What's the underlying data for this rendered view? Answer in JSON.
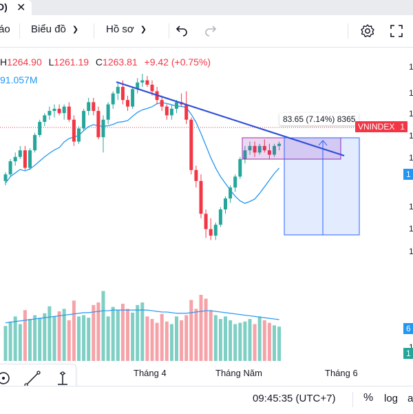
{
  "tab": {
    "title": "D)",
    "close_icon": "close-icon"
  },
  "toolbar": {
    "partial_label": "áo",
    "chart_menu": "Biểu đồ",
    "profile_menu": "Hồ sơ",
    "undo_icon": "undo-icon",
    "redo_icon": "redo-icon",
    "settings_icon": "gear-icon",
    "fullscreen_icon": "fullscreen-icon"
  },
  "legend": {
    "high_label": "H",
    "high": "1264.90",
    "low_label": "L",
    "low": "1261.19",
    "close_label": "C",
    "close": "1263.81",
    "change": "+9.42 (+0.75%)",
    "volume_ma": "91.057M"
  },
  "price_axis": {
    "partial_ticks": [
      "1",
      "1",
      "1",
      "1",
      "1",
      "1",
      "1",
      "1",
      "1"
    ],
    "symbol_tag": "VNINDEX",
    "symbol_tag_partial": "1",
    "ma_tag_partial": "1",
    "vol_tag_partial": "6",
    "vol_tag2_partial": "1"
  },
  "measure": {
    "text": "83.65 (7.14%) 8365"
  },
  "time_axis": {
    "labels": [
      "Tháng 4",
      "Tháng Năm",
      "Tháng 6"
    ]
  },
  "status": {
    "time": "09:45:35 (UTC+7)",
    "percent": "%",
    "log": "log",
    "auto": "a"
  },
  "colors": {
    "up": "#26a69a",
    "down": "#f23645",
    "ma": "#2196f3",
    "trend": "#2e4fd8",
    "vol_up": "#7fcfc4",
    "vol_down": "#f5a3a9"
  },
  "chart_data": {
    "type": "bar",
    "candles": [
      {
        "o": 1230,
        "h": 1238,
        "l": 1226,
        "c": 1236
      },
      {
        "o": 1236,
        "h": 1250,
        "l": 1234,
        "c": 1248
      },
      {
        "o": 1248,
        "h": 1256,
        "l": 1244,
        "c": 1252
      },
      {
        "o": 1252,
        "h": 1262,
        "l": 1250,
        "c": 1258
      },
      {
        "o": 1258,
        "h": 1262,
        "l": 1240,
        "c": 1242
      },
      {
        "o": 1242,
        "h": 1260,
        "l": 1240,
        "c": 1258
      },
      {
        "o": 1258,
        "h": 1274,
        "l": 1256,
        "c": 1272
      },
      {
        "o": 1272,
        "h": 1286,
        "l": 1270,
        "c": 1284
      },
      {
        "o": 1284,
        "h": 1292,
        "l": 1280,
        "c": 1290
      },
      {
        "o": 1290,
        "h": 1298,
        "l": 1286,
        "c": 1294
      },
      {
        "o": 1294,
        "h": 1300,
        "l": 1288,
        "c": 1296
      },
      {
        "o": 1296,
        "h": 1300,
        "l": 1290,
        "c": 1292
      },
      {
        "o": 1292,
        "h": 1300,
        "l": 1286,
        "c": 1298
      },
      {
        "o": 1298,
        "h": 1302,
        "l": 1284,
        "c": 1286
      },
      {
        "o": 1286,
        "h": 1290,
        "l": 1262,
        "c": 1266
      },
      {
        "o": 1266,
        "h": 1280,
        "l": 1264,
        "c": 1278
      },
      {
        "o": 1278,
        "h": 1296,
        "l": 1276,
        "c": 1294
      },
      {
        "o": 1294,
        "h": 1306,
        "l": 1290,
        "c": 1302
      },
      {
        "o": 1302,
        "h": 1306,
        "l": 1290,
        "c": 1294
      },
      {
        "o": 1294,
        "h": 1298,
        "l": 1268,
        "c": 1270
      },
      {
        "o": 1270,
        "h": 1290,
        "l": 1256,
        "c": 1286
      },
      {
        "o": 1286,
        "h": 1302,
        "l": 1282,
        "c": 1300
      },
      {
        "o": 1300,
        "h": 1312,
        "l": 1296,
        "c": 1310
      },
      {
        "o": 1310,
        "h": 1320,
        "l": 1304,
        "c": 1316
      },
      {
        "o": 1316,
        "h": 1322,
        "l": 1300,
        "c": 1304
      },
      {
        "o": 1304,
        "h": 1308,
        "l": 1294,
        "c": 1298
      },
      {
        "o": 1298,
        "h": 1316,
        "l": 1296,
        "c": 1314
      },
      {
        "o": 1314,
        "h": 1324,
        "l": 1310,
        "c": 1320
      },
      {
        "o": 1320,
        "h": 1328,
        "l": 1316,
        "c": 1322
      },
      {
        "o": 1322,
        "h": 1326,
        "l": 1316,
        "c": 1318
      },
      {
        "o": 1318,
        "h": 1322,
        "l": 1308,
        "c": 1312
      },
      {
        "o": 1312,
        "h": 1316,
        "l": 1300,
        "c": 1304
      },
      {
        "o": 1304,
        "h": 1308,
        "l": 1294,
        "c": 1298
      },
      {
        "o": 1298,
        "h": 1300,
        "l": 1286,
        "c": 1290
      },
      {
        "o": 1290,
        "h": 1300,
        "l": 1286,
        "c": 1296
      },
      {
        "o": 1296,
        "h": 1304,
        "l": 1292,
        "c": 1302
      },
      {
        "o": 1302,
        "h": 1310,
        "l": 1298,
        "c": 1300
      },
      {
        "o": 1300,
        "h": 1312,
        "l": 1282,
        "c": 1286
      },
      {
        "o": 1286,
        "h": 1288,
        "l": 1236,
        "c": 1240
      },
      {
        "o": 1240,
        "h": 1244,
        "l": 1224,
        "c": 1230
      },
      {
        "o": 1230,
        "h": 1236,
        "l": 1196,
        "c": 1200
      },
      {
        "o": 1200,
        "h": 1204,
        "l": 1178,
        "c": 1186
      },
      {
        "o": 1186,
        "h": 1196,
        "l": 1176,
        "c": 1180
      },
      {
        "o": 1180,
        "h": 1192,
        "l": 1176,
        "c": 1190
      },
      {
        "o": 1190,
        "h": 1206,
        "l": 1188,
        "c": 1204
      },
      {
        "o": 1204,
        "h": 1216,
        "l": 1200,
        "c": 1214
      },
      {
        "o": 1214,
        "h": 1226,
        "l": 1210,
        "c": 1224
      },
      {
        "o": 1224,
        "h": 1236,
        "l": 1220,
        "c": 1234
      },
      {
        "o": 1234,
        "h": 1252,
        "l": 1232,
        "c": 1250
      },
      {
        "o": 1250,
        "h": 1262,
        "l": 1246,
        "c": 1258
      },
      {
        "o": 1258,
        "h": 1266,
        "l": 1254,
        "c": 1262
      },
      {
        "o": 1262,
        "h": 1266,
        "l": 1252,
        "c": 1256
      },
      {
        "o": 1256,
        "h": 1264,
        "l": 1254,
        "c": 1262
      },
      {
        "o": 1262,
        "h": 1268,
        "l": 1256,
        "c": 1258
      },
      {
        "o": 1258,
        "h": 1264,
        "l": 1250,
        "c": 1254
      },
      {
        "o": 1254,
        "h": 1264,
        "l": 1252,
        "c": 1262
      },
      {
        "o": 1262,
        "h": 1266,
        "l": 1258,
        "c": 1264
      }
    ],
    "volumes": [
      55,
      62,
      70,
      58,
      80,
      66,
      72,
      68,
      75,
      86,
      70,
      78,
      82,
      64,
      95,
      70,
      72,
      68,
      88,
      92,
      110,
      70,
      85,
      80,
      90,
      82,
      76,
      88,
      92,
      70,
      66,
      60,
      74,
      62,
      58,
      70,
      64,
      72,
      96,
      82,
      104,
      98,
      80,
      72,
      66,
      70,
      64,
      58,
      60,
      62,
      66,
      58,
      70,
      64,
      60,
      56,
      54
    ],
    "volume_ma": [
      60,
      61,
      62,
      63,
      64,
      65,
      66,
      67,
      68,
      69,
      70,
      71,
      72,
      73,
      74,
      75,
      76,
      76,
      77,
      78,
      79,
      79,
      80,
      80,
      80,
      80,
      80,
      80,
      80,
      80,
      79,
      78,
      77,
      77,
      76,
      75,
      75,
      75,
      76,
      77,
      78,
      79,
      79,
      78,
      77,
      76,
      75,
      74,
      73,
      72,
      71,
      70,
      69,
      68,
      67,
      66,
      65
    ],
    "ylim": [
      1170,
      1340
    ],
    "volume_ylim": [
      0,
      130
    ]
  }
}
